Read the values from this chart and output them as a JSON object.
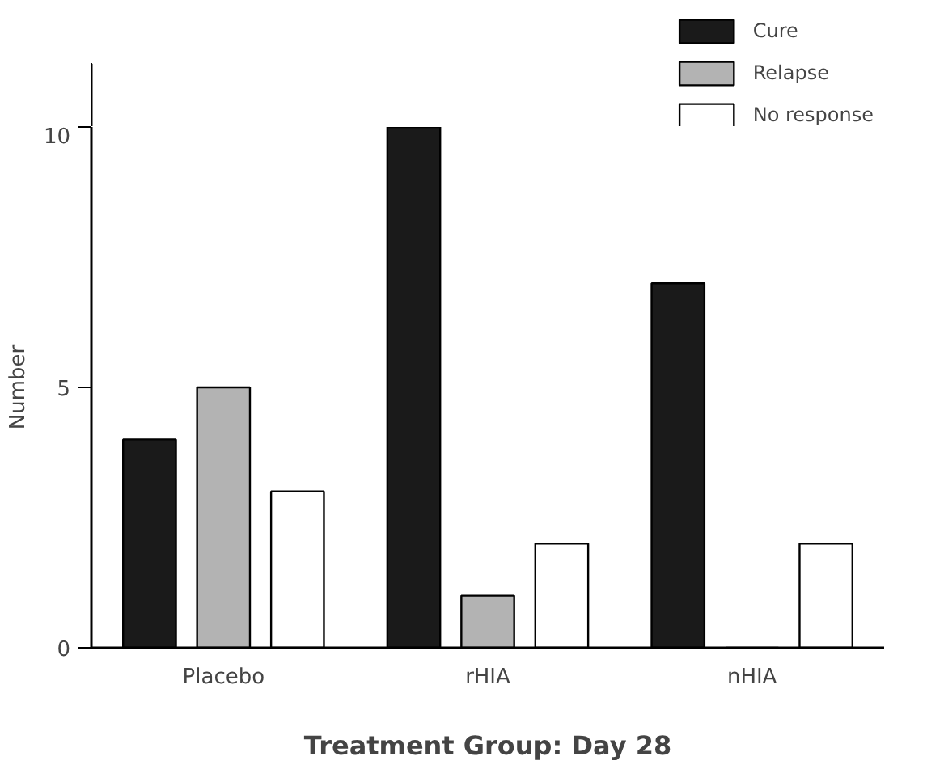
{
  "chart_data": {
    "type": "bar",
    "xlabel": "Treatment Group: Day 28",
    "ylabel": "Number",
    "categories": [
      "Placebo",
      "rHIA",
      "nHIA"
    ],
    "series": [
      {
        "name": "Cure",
        "color": "#1a1a1a",
        "values": [
          4,
          10,
          7
        ]
      },
      {
        "name": "Relapse",
        "color": "#b3b3b3",
        "values": [
          5,
          1,
          null
        ]
      },
      {
        "name": "No response",
        "color": "#ffffff",
        "values": [
          3,
          2,
          2
        ]
      }
    ],
    "ylim": [
      0,
      10
    ],
    "yticks": [
      0,
      5,
      10
    ],
    "grid": false,
    "legend": "top right"
  }
}
